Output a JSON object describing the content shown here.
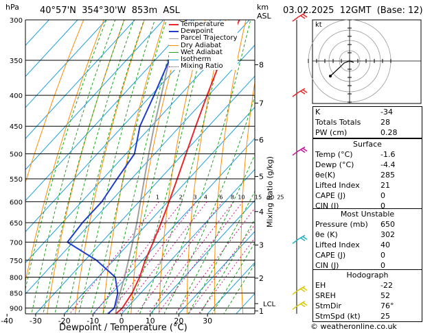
{
  "header": {
    "location": "40°57'N  354°30'W  853m  ASL",
    "datetime": "03.02.2025  12GMT  (Base: 12)",
    "hpa_label": "hPa",
    "km_label": "km",
    "asl_label": "ASL"
  },
  "chart_data": {
    "type": "skew-t",
    "xlabel": "Dewpoint / Temperature (°C)",
    "ylabel_right": "Mixing Ratio (g/kg)",
    "x_ticks": [
      -40,
      -30,
      -20,
      -10,
      0,
      10,
      20,
      30
    ],
    "xlim": [
      -42,
      37
    ],
    "pressure_ticks": [
      300,
      350,
      400,
      450,
      500,
      550,
      600,
      650,
      700,
      750,
      800,
      850,
      900
    ],
    "ylim_hpa": [
      300,
      920
    ],
    "km_ticks": [
      {
        "label": "8",
        "p": 356
      },
      {
        "label": "7",
        "p": 412
      },
      {
        "label": "6",
        "p": 474
      },
      {
        "label": "5",
        "p": 545
      },
      {
        "label": "4",
        "p": 623
      },
      {
        "label": "3",
        "p": 708
      },
      {
        "label": "2",
        "p": 803
      },
      {
        "label": "1",
        "p": 910
      }
    ],
    "lcl_label": "LCL",
    "lcl_p": 885,
    "mixing_ratio_labels": [
      "1",
      "2",
      "3",
      "4",
      "6",
      "8",
      "10",
      "15",
      "20",
      "25"
    ],
    "mixing_ratios": [
      1,
      2,
      3,
      4,
      6,
      8,
      10,
      15,
      20,
      25
    ],
    "legend": [
      {
        "name": "Temperature",
        "color": "#e8262a",
        "dash": "none"
      },
      {
        "name": "Dewpoint",
        "color": "#1e3ccf",
        "dash": "none"
      },
      {
        "name": "Parcel Trajectory",
        "color": "#a0a0a0",
        "dash": "none"
      },
      {
        "name": "Dry Adiabat",
        "color": "#ff8c00",
        "dash": "none"
      },
      {
        "name": "Wet Adiabat",
        "color": "#1aa31a",
        "dash": "none"
      },
      {
        "name": "Isotherm",
        "color": "#1e9fdf",
        "dash": "none"
      },
      {
        "name": "Mixing Ratio",
        "color": "#d0108c",
        "dash": "2,2"
      }
    ],
    "temperature": [
      {
        "p": 920,
        "t": -2.0
      },
      {
        "p": 900,
        "t": -1.6
      },
      {
        "p": 850,
        "t": -3.0
      },
      {
        "p": 800,
        "t": -5.5
      },
      {
        "p": 750,
        "t": -9.0
      },
      {
        "p": 700,
        "t": -12.0
      },
      {
        "p": 650,
        "t": -15.5
      },
      {
        "p": 600,
        "t": -19.5
      },
      {
        "p": 550,
        "t": -24.0
      },
      {
        "p": 500,
        "t": -29.0
      },
      {
        "p": 450,
        "t": -34.5
      },
      {
        "p": 400,
        "t": -40.5
      },
      {
        "p": 350,
        "t": -47.0
      },
      {
        "p": 300,
        "t": -53.5
      }
    ],
    "dewpoint": [
      {
        "p": 920,
        "t": -4.8
      },
      {
        "p": 900,
        "t": -4.4
      },
      {
        "p": 850,
        "t": -8.0
      },
      {
        "p": 800,
        "t": -14.0
      },
      {
        "p": 750,
        "t": -26.0
      },
      {
        "p": 700,
        "t": -42.0
      },
      {
        "p": 650,
        "t": -43.0
      },
      {
        "p": 600,
        "t": -43.0
      },
      {
        "p": 550,
        "t": -45.0
      },
      {
        "p": 500,
        "t": -47.0
      },
      {
        "p": 450,
        "t": -54.0
      },
      {
        "p": 400,
        "t": -59.0
      },
      {
        "p": 350,
        "t": -65.0
      },
      {
        "p": 300,
        "t": -72.0
      }
    ],
    "parcel": [
      {
        "p": 920,
        "t": -2.0
      },
      {
        "p": 885,
        "t": -5.0
      },
      {
        "p": 850,
        "t": -7.2
      },
      {
        "p": 800,
        "t": -10.8
      },
      {
        "p": 750,
        "t": -14.8
      },
      {
        "p": 700,
        "t": -19.2
      },
      {
        "p": 650,
        "t": -24.0
      },
      {
        "p": 600,
        "t": -29.5
      },
      {
        "p": 550,
        "t": -35.5
      },
      {
        "p": 500,
        "t": -42.0
      },
      {
        "p": 450,
        "t": -49.0
      },
      {
        "p": 400,
        "t": -56.5
      },
      {
        "p": 350,
        "t": -65.0
      },
      {
        "p": 300,
        "t": -74.0
      }
    ],
    "wind_barbs": [
      {
        "p": 300,
        "color": "#e8262a"
      },
      {
        "p": 400,
        "color": "#e8262a"
      },
      {
        "p": 500,
        "color": "#c8109c"
      },
      {
        "p": 700,
        "color": "#20b0c0"
      },
      {
        "p": 850,
        "color": "#d8c800"
      },
      {
        "p": 900,
        "color": "#d8c800"
      }
    ]
  },
  "hodograph": {
    "label": "kt"
  },
  "indices": {
    "top": [
      {
        "label": "K",
        "value": "-34"
      },
      {
        "label": "Totals Totals",
        "value": "28"
      },
      {
        "label": "PW (cm)",
        "value": "0.28"
      }
    ],
    "surface_title": "Surface",
    "surface": [
      {
        "label": "Temp (°C)",
        "value": "-1.6"
      },
      {
        "label": "Dewp (°C)",
        "value": "-4.4"
      },
      {
        "label": "θe(K)",
        "value": "285"
      },
      {
        "label": "Lifted Index",
        "value": "21"
      },
      {
        "label": "CAPE (J)",
        "value": "0"
      },
      {
        "label": "CIN (J)",
        "value": "0"
      }
    ],
    "unstable_title": "Most Unstable",
    "unstable": [
      {
        "label": "Pressure (mb)",
        "value": "650"
      },
      {
        "label": "θe (K)",
        "value": "302"
      },
      {
        "label": "Lifted Index",
        "value": "40"
      },
      {
        "label": "CAPE (J)",
        "value": "0"
      },
      {
        "label": "CIN (J)",
        "value": "0"
      }
    ],
    "hodograph_title": "Hodograph",
    "hodo": [
      {
        "label": "EH",
        "value": "-22"
      },
      {
        "label": "SREH",
        "value": "52"
      },
      {
        "label": "StmDir",
        "value": "76°"
      },
      {
        "label": "StmSpd (kt)",
        "value": "25"
      }
    ]
  },
  "footer": "© weatheronline.co.uk"
}
